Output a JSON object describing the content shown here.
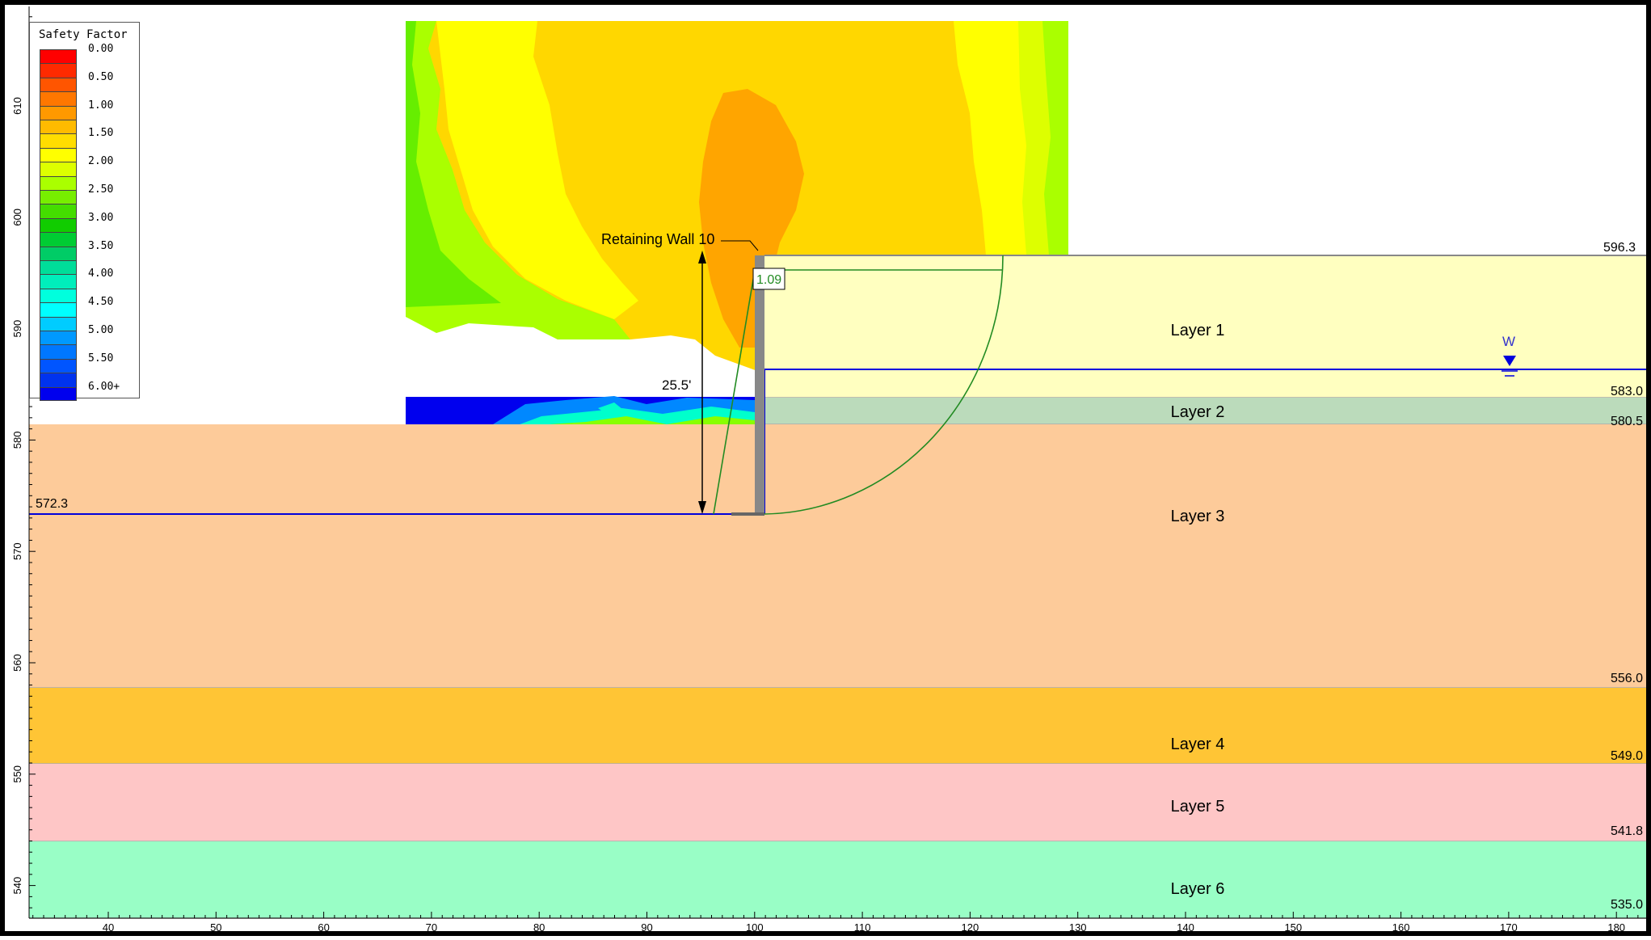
{
  "legend": {
    "title": "Safety Factor",
    "entries": [
      {
        "label": "0.00",
        "color": "#ff0000"
      },
      {
        "label": "",
        "color": "#ff2a00"
      },
      {
        "label": "0.50",
        "color": "#ff5500"
      },
      {
        "label": "",
        "color": "#ff7700"
      },
      {
        "label": "1.00",
        "color": "#ff9900"
      },
      {
        "label": "",
        "color": "#ffbb00"
      },
      {
        "label": "1.50",
        "color": "#ffdd00"
      },
      {
        "label": "",
        "color": "#ffff00"
      },
      {
        "label": "2.00",
        "color": "#ddff00"
      },
      {
        "label": "",
        "color": "#aaff00"
      },
      {
        "label": "2.50",
        "color": "#77ee00"
      },
      {
        "label": "",
        "color": "#44dd00"
      },
      {
        "label": "3.00",
        "color": "#11cc00"
      },
      {
        "label": "",
        "color": "#00cc33"
      },
      {
        "label": "3.50",
        "color": "#00cc66"
      },
      {
        "label": "",
        "color": "#00dd99"
      },
      {
        "label": "4.00",
        "color": "#00eebb"
      },
      {
        "label": "",
        "color": "#00ffdd"
      },
      {
        "label": "4.50",
        "color": "#00ffff"
      },
      {
        "label": "",
        "color": "#00ccff"
      },
      {
        "label": "5.00",
        "color": "#0099ff"
      },
      {
        "label": "",
        "color": "#0077ff"
      },
      {
        "label": "5.50",
        "color": "#0055ff"
      },
      {
        "label": "",
        "color": "#0033ee"
      },
      {
        "label": "6.00+",
        "color": "#0000ee"
      }
    ]
  },
  "axes": {
    "x_ticks": [
      "40",
      "50",
      "60",
      "70",
      "80",
      "90",
      "100",
      "110",
      "120",
      "130",
      "140",
      "150",
      "160",
      "170",
      "180"
    ],
    "y_ticks": [
      "610",
      "600",
      "590",
      "580",
      "570",
      "560",
      "550",
      "540"
    ]
  },
  "layers": [
    {
      "name": "Layer 1",
      "bottom_label": "583.0",
      "color": "#ffffc0"
    },
    {
      "name": "Layer 2",
      "bottom_label": "580.5",
      "color": "#bbdbbb"
    },
    {
      "name": "Layer 3",
      "bottom_label": "556.0",
      "color": "#fdcb9a"
    },
    {
      "name": "Layer 4",
      "bottom_label": "549.0",
      "color": "#ffc535"
    },
    {
      "name": "Layer 5",
      "bottom_label": "541.8",
      "color": "#fec6c6"
    },
    {
      "name": "Layer 6",
      "bottom_label": "535.0",
      "color": "#99fec6"
    }
  ],
  "elevations": {
    "top_right": "596.3",
    "left_ground": "572.3"
  },
  "wall": {
    "label": "Retaining Wall 10",
    "height_label": "25.5'"
  },
  "slip_surface": {
    "factor": "1.09"
  },
  "water_table": {
    "label": "W"
  },
  "colors": {
    "water_line": "#0000dd",
    "slip_surface": "#228b22",
    "wall": "#888888",
    "frame": "#000000"
  }
}
